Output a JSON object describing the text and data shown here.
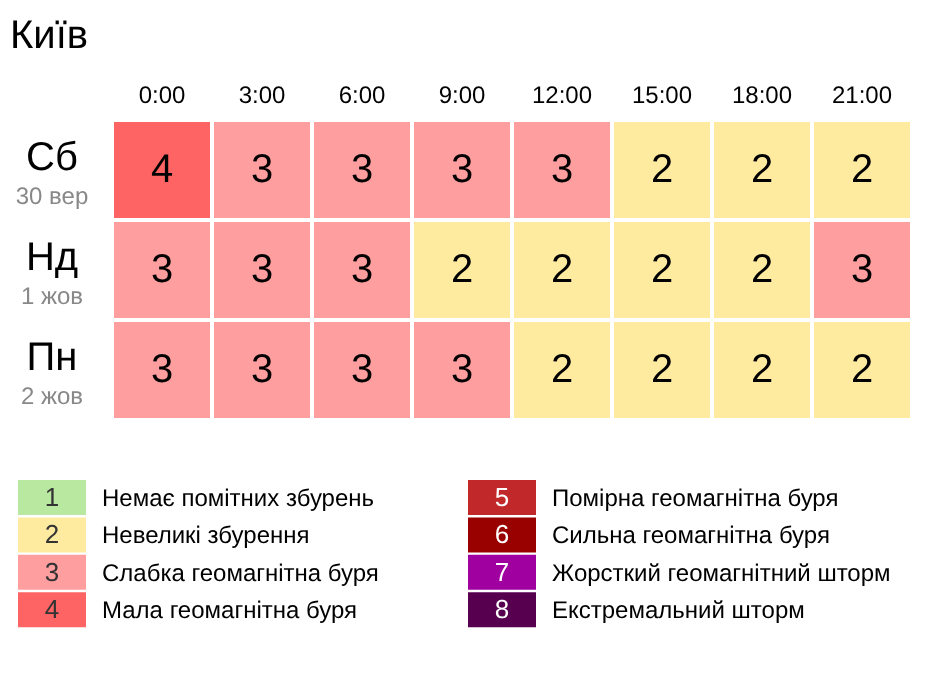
{
  "chart_data": {
    "type": "heatmap",
    "title": "Київ",
    "categories": [
      "0:00",
      "3:00",
      "6:00",
      "9:00",
      "12:00",
      "15:00",
      "18:00",
      "21:00"
    ],
    "y_categories": [
      "Сб",
      "Нд",
      "Пн"
    ],
    "y2_categories": [
      "30 вер",
      "1 жов",
      "2 жов"
    ],
    "cells": [
      [
        4,
        3,
        3,
        3,
        3,
        2,
        2,
        2
      ],
      [
        3,
        3,
        3,
        2,
        2,
        2,
        2,
        3
      ],
      [
        3,
        3,
        3,
        3,
        2,
        2,
        2,
        2
      ]
    ],
    "data_labels": true,
    "colors": [
      "#b9e8a0",
      "#ffeba0",
      "#ff9e9e",
      "#ff6464",
      "#c0282a",
      "#990000",
      "#a000a0",
      "#580050"
    ],
    "annotations": [
      "1",
      "Немає помітних збурень",
      "2",
      "Невеликі збурення",
      "3",
      "Слабка геомагнітна буря",
      "4",
      "Мала геомагнітна буря",
      "5",
      "Помірна геомагнітна буря",
      "6",
      "Сильна геомагнітна буря",
      "7",
      "Жорсткий геомагнітний шторм",
      "8",
      "Екстремальний шторм"
    ]
  }
}
